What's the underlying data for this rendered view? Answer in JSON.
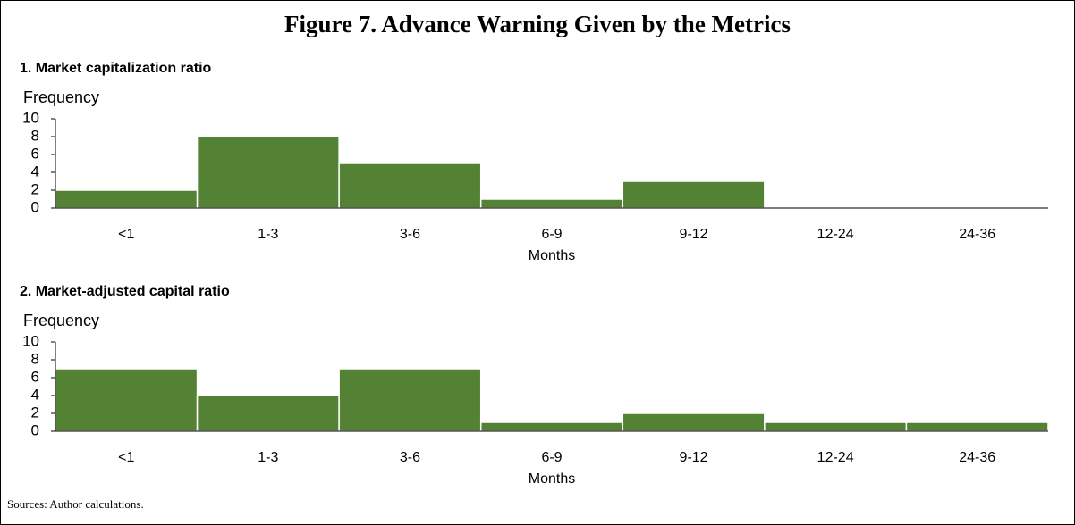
{
  "title": "Figure 7. Advance Warning Given by the Metrics",
  "source": "Sources: Author calculations.",
  "chart_data": [
    {
      "type": "bar",
      "title": "1. Market capitalization ratio",
      "ylabel": "Frequency",
      "xlabel": "Months",
      "categories": [
        "<1",
        "1-3",
        "3-6",
        "6-9",
        "9-12",
        "12-24",
        "24-36"
      ],
      "values": [
        2,
        8,
        5,
        1,
        3,
        0,
        0
      ],
      "color": "#548235",
      "ylim": [
        0,
        10
      ],
      "yticks": [
        0,
        2,
        4,
        6,
        8,
        10
      ]
    },
    {
      "type": "bar",
      "title": "2. Market-adjusted capital ratio",
      "ylabel": "Frequency",
      "xlabel": "Months",
      "categories": [
        "<1",
        "1-3",
        "3-6",
        "6-9",
        "9-12",
        "12-24",
        "24-36"
      ],
      "values": [
        7,
        4,
        7,
        1,
        2,
        1,
        1
      ],
      "color": "#548235",
      "ylim": [
        0,
        10
      ],
      "yticks": [
        0,
        2,
        4,
        6,
        8,
        10
      ]
    }
  ]
}
